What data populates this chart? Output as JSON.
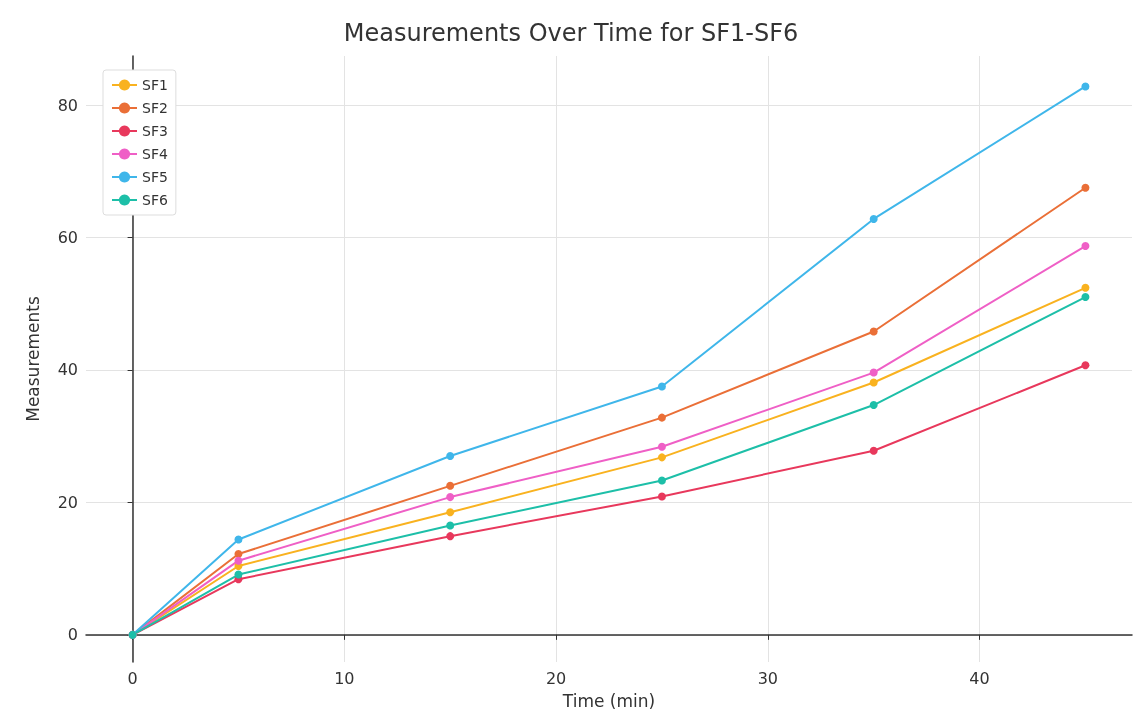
{
  "chart_data": {
    "type": "line",
    "title": "Measurements Over Time for SF1-SF6",
    "xlabel": "Time (min)",
    "ylabel": "Measurements",
    "x": [
      0,
      5,
      15,
      25,
      35,
      45
    ],
    "series": [
      {
        "name": "SF1",
        "color": "#f9b21f",
        "values": [
          0,
          10.4,
          18.5,
          26.8,
          38.1,
          52.4
        ]
      },
      {
        "name": "SF2",
        "color": "#ea6f37",
        "values": [
          0,
          12.2,
          22.5,
          32.8,
          45.8,
          67.5
        ]
      },
      {
        "name": "SF3",
        "color": "#e8385c",
        "values": [
          0,
          8.4,
          14.9,
          20.9,
          27.8,
          40.7
        ]
      },
      {
        "name": "SF4",
        "color": "#ef5fc6",
        "values": [
          0,
          11.2,
          20.8,
          28.4,
          39.6,
          58.7
        ]
      },
      {
        "name": "SF5",
        "color": "#3fb6ea",
        "values": [
          0,
          14.4,
          27,
          37.5,
          62.8,
          82.8
        ]
      },
      {
        "name": "SF6",
        "color": "#1dbfa8",
        "values": [
          0,
          9.1,
          16.5,
          23.3,
          34.7,
          51
        ]
      }
    ],
    "xlim": [
      -2.2,
      47.2
    ],
    "ylim": [
      -4.1,
      87.4
    ],
    "xticks": [
      0,
      10,
      20,
      30,
      40
    ],
    "yticks": [
      0,
      20,
      40,
      60,
      80
    ],
    "grid": true,
    "legend": "top left",
    "marker": "circle",
    "line_style": "solid"
  }
}
